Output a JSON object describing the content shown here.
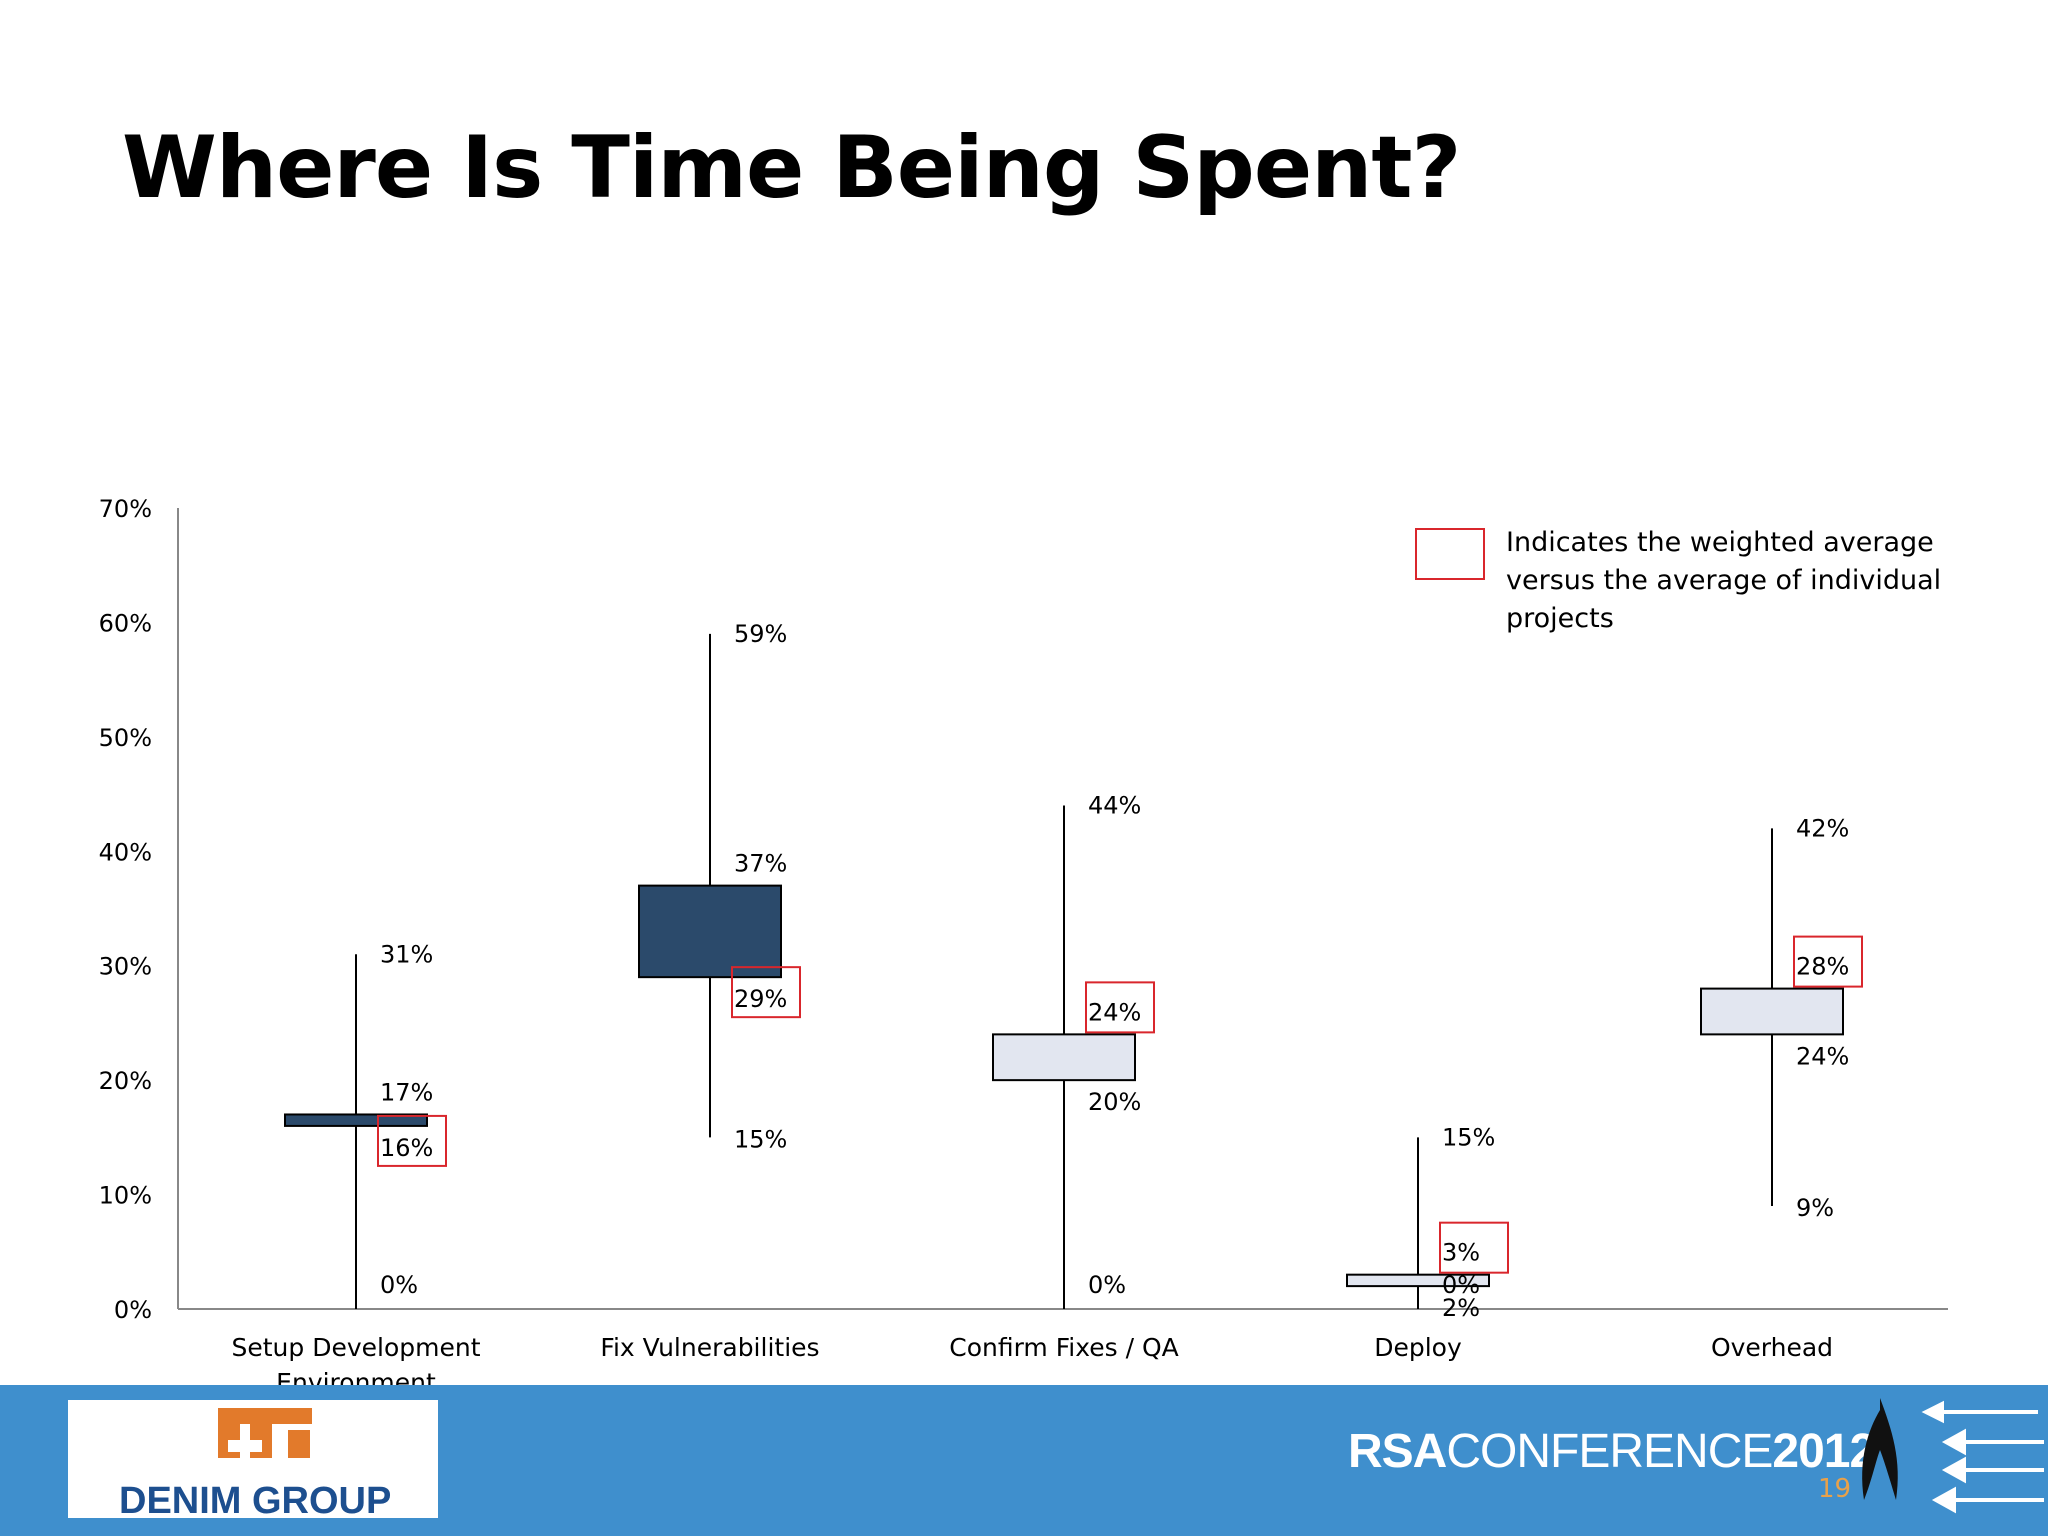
{
  "title": "Where Is Time Being Spent?",
  "legend": {
    "lines": [
      "Indicates the weighted average",
      "versus the average of individual",
      "projects"
    ],
    "marker_color": "#d9262c"
  },
  "chart_data": {
    "type": "box",
    "ylim": [
      0,
      70
    ],
    "yticks": [
      "0%",
      "10%",
      "20%",
      "30%",
      "40%",
      "50%",
      "60%",
      "70%"
    ],
    "categories": [
      {
        "label": [
          "Setup Development",
          "Environment"
        ],
        "min": 0,
        "max": 31,
        "box_low": 16,
        "box_high": 17,
        "weighted_avg": 16,
        "labels": {
          "max": "31%",
          "box_high": "17%",
          "box_low": "16%",
          "min": "0%"
        },
        "fill": "#2b4a6b"
      },
      {
        "label": [
          "Fix Vulnerabilities"
        ],
        "min": 15,
        "max": 59,
        "box_low": 29,
        "box_high": 37,
        "weighted_avg": 29,
        "labels": {
          "max": "59%",
          "box_high": "37%",
          "box_low": "29%",
          "min": "15%"
        },
        "fill": "#2b4a6b"
      },
      {
        "label": [
          "Confirm Fixes / QA"
        ],
        "min": 0,
        "max": 44,
        "box_low": 20,
        "box_high": 24,
        "weighted_avg": 24,
        "labels": {
          "max": "44%",
          "box_high": "24%",
          "box_low": "20%",
          "min": "0%"
        },
        "fill": "#e2e6f0"
      },
      {
        "label": [
          "Deploy"
        ],
        "min": 0,
        "max": 15,
        "box_low": 2,
        "box_high": 3,
        "weighted_avg": 3,
        "labels": {
          "max": "15%",
          "box_high": "3%",
          "box_low": "2%",
          "min": "0%"
        },
        "fill": "#e2e6f0"
      },
      {
        "label": [
          "Overhead"
        ],
        "min": 9,
        "max": 42,
        "box_low": 24,
        "box_high": 28,
        "weighted_avg": 28,
        "labels": {
          "max": "42%",
          "box_high": "28%",
          "box_low": "24%",
          "min": "9%"
        },
        "fill": "#e2e6f0"
      }
    ]
  },
  "footer": {
    "logo_text": "DENIM GROUP",
    "conference_prefix": "RSA",
    "conference_mid": "CONFERENCE",
    "conference_year": "2012",
    "page_number": "19",
    "band_color": "#3f8fcd"
  }
}
